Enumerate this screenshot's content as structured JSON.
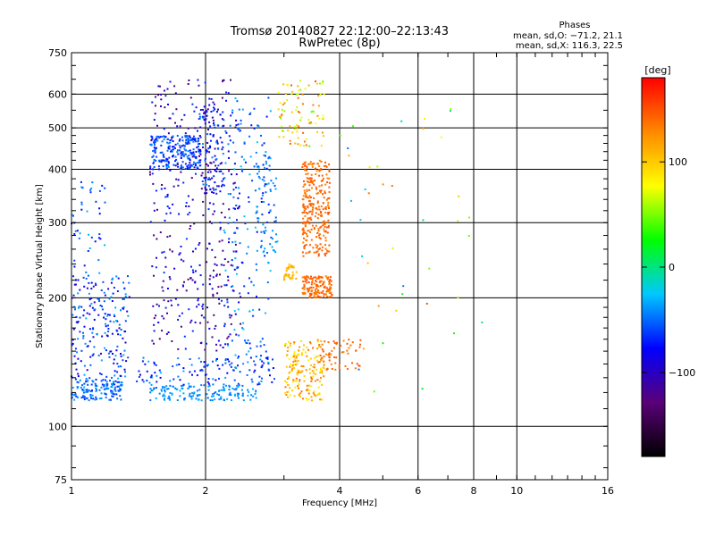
{
  "chart_data": {
    "type": "scatter",
    "title": "Tromsø 20140827 22:12:00–22:13:43",
    "subtitle": "RwPretec (8p)",
    "xlabel": "Frequency [MHz]",
    "ylabel": "Stationary phase Virtual Height [km]",
    "x_scale": "log",
    "y_scale": "log",
    "xlim": [
      1,
      16
    ],
    "ylim": [
      75,
      750
    ],
    "x_ticks": [
      1,
      2,
      4,
      6,
      8,
      10,
      16
    ],
    "x_tick_labels": [
      "1",
      "2",
      "4",
      "6",
      "8",
      "10",
      "16"
    ],
    "y_ticks": [
      75,
      100,
      200,
      300,
      400,
      500,
      600,
      750
    ],
    "y_tick_labels": [
      "75",
      "100",
      "200",
      "300",
      "400",
      "500",
      "600",
      "750"
    ],
    "grid_x": [
      2,
      4,
      6,
      8,
      10
    ],
    "grid_y": [
      100,
      200,
      300,
      400,
      500,
      600
    ],
    "grid": true,
    "stats": {
      "heading": "Phases",
      "line_o": "mean, sd,O: −71.2, 21.1",
      "line_x": "mean, sd,X: 116.3, 22.5"
    },
    "colorbar": {
      "label": "[deg]",
      "range": [
        -180,
        180
      ],
      "ticks": [
        100,
        0,
        -100
      ],
      "tick_labels": [
        "100",
        "0",
        "−100"
      ],
      "colors": [
        "#000000",
        "#5a0078",
        "#0000ff",
        "#00c8ff",
        "#00ff00",
        "#ffff00",
        "#ff8800",
        "#ff0000"
      ]
    },
    "clusters": [
      {
        "x": [
          1.0,
          1.3
        ],
        "y": [
          115,
          130
        ],
        "phase": [
          -70,
          -30
        ],
        "n": 150
      },
      {
        "x": [
          1.0,
          1.35
        ],
        "y": [
          130,
          230
        ],
        "phase": [
          -100,
          -30
        ],
        "n": 200
      },
      {
        "x": [
          1.0,
          1.2
        ],
        "y": [
          230,
          380
        ],
        "phase": [
          -80,
          -30
        ],
        "n": 40
      },
      {
        "x": [
          1.5,
          2.6
        ],
        "y": [
          115,
          125
        ],
        "phase": [
          -50,
          -30
        ],
        "n": 150
      },
      {
        "x": [
          1.4,
          2.9
        ],
        "y": [
          125,
          145
        ],
        "phase": [
          -90,
          -30
        ],
        "n": 120
      },
      {
        "x": [
          1.5,
          1.95
        ],
        "y": [
          400,
          480
        ],
        "phase": [
          -80,
          -40
        ],
        "n": 220
      },
      {
        "x": [
          1.9,
          2.2
        ],
        "y": [
          350,
          560
        ],
        "phase": [
          -110,
          -40
        ],
        "n": 120
      },
      {
        "x": [
          1.5,
          2.4
        ],
        "y": [
          150,
          650
        ],
        "phase": [
          -140,
          -60
        ],
        "n": 350
      },
      {
        "x": [
          2.2,
          2.8
        ],
        "y": [
          140,
          600
        ],
        "phase": [
          -80,
          -20
        ],
        "n": 180
      },
      {
        "x": [
          2.6,
          2.9
        ],
        "y": [
          250,
          450
        ],
        "phase": [
          -60,
          -30
        ],
        "n": 60
      },
      {
        "x": [
          3.3,
          3.8
        ],
        "y": [
          250,
          420
        ],
        "phase": [
          130,
          150
        ],
        "n": 280
      },
      {
        "x": [
          3.3,
          3.85
        ],
        "y": [
          200,
          225
        ],
        "phase": [
          130,
          150
        ],
        "n": 150
      },
      {
        "x": [
          3.0,
          3.7
        ],
        "y": [
          115,
          160
        ],
        "phase": [
          80,
          140
        ],
        "n": 180
      },
      {
        "x": [
          3.6,
          4.5
        ],
        "y": [
          135,
          160
        ],
        "phase": [
          130,
          150
        ],
        "n": 60
      },
      {
        "x": [
          3.0,
          3.2
        ],
        "y": [
          220,
          240
        ],
        "phase": [
          100,
          120
        ],
        "n": 40
      },
      {
        "x": [
          2.9,
          3.7
        ],
        "y": [
          450,
          650
        ],
        "phase": [
          40,
          150
        ],
        "n": 90
      },
      {
        "x": [
          4.0,
          8.5
        ],
        "y": [
          120,
          600
        ],
        "phase": [
          -60,
          150
        ],
        "n": 40
      }
    ]
  }
}
